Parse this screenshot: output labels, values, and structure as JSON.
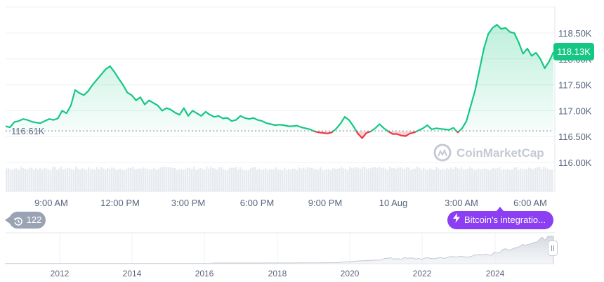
{
  "chart_data": {
    "type": "line",
    "y_ticks": [
      "118.50K",
      "118.00K",
      "117.50K",
      "117.00K",
      "116.50K",
      "116.00K"
    ],
    "ylim": [
      115.6,
      118.9
    ],
    "x_ticks": [
      "9:00 AM",
      "12:00 PM",
      "3:00 PM",
      "6:00 PM",
      "9:00 PM",
      "10 Aug",
      "3:00 AM",
      "6:00 AM"
    ],
    "reference_value": 116.61,
    "reference_label": "116.61K",
    "current_price_label": "118.13K",
    "series": [
      {
        "values": [
          116.7,
          116.68,
          116.78,
          116.8,
          116.84,
          116.82,
          116.79,
          116.77,
          116.76,
          116.8,
          116.84,
          116.82,
          116.85,
          117.0,
          116.95,
          117.1,
          117.4,
          117.34,
          117.3,
          117.38,
          117.5,
          117.6,
          117.7,
          117.8,
          117.86,
          117.75,
          117.62,
          117.5,
          117.35,
          117.3,
          117.2,
          117.26,
          117.12,
          117.2,
          117.15,
          117.1,
          117.0,
          117.05,
          117.02,
          116.96,
          116.92,
          117.05,
          116.9,
          117.0,
          116.95,
          116.9,
          116.98,
          116.92,
          116.88,
          116.9,
          116.85,
          116.86,
          116.8,
          116.82,
          116.9,
          116.86,
          116.84,
          116.86,
          116.82,
          116.8,
          116.76,
          116.74,
          116.72,
          116.73,
          116.72,
          116.7,
          116.7,
          116.71,
          116.68,
          116.66,
          116.64,
          116.6,
          116.58,
          116.57,
          116.56,
          116.58,
          116.65,
          116.75,
          116.88,
          116.82,
          116.7,
          116.56,
          116.47,
          116.57,
          116.6,
          116.66,
          116.74,
          116.66,
          116.6,
          116.55,
          116.55,
          116.52,
          116.51,
          116.56,
          116.58,
          116.62,
          116.66,
          116.72,
          116.64,
          116.66,
          116.65,
          116.64,
          116.63,
          116.67,
          116.58,
          116.66,
          116.8,
          117.1,
          117.4,
          117.8,
          118.2,
          118.48,
          118.6,
          118.66,
          118.58,
          118.6,
          118.52,
          118.5,
          118.32,
          118.1,
          118.2,
          118.06,
          118.12,
          118.0,
          117.82,
          117.95,
          118.13
        ]
      }
    ],
    "navigator_ticks": [
      "2012",
      "2014",
      "2016",
      "2018",
      "2020",
      "2022",
      "2024"
    ],
    "grid": true,
    "legend": "none"
  },
  "watermark": "CoinMarketCap",
  "events": {
    "count": "122"
  },
  "news": {
    "label": "Bitcoin's integratio..."
  },
  "colors": {
    "up": "#16c784",
    "down": "#ea3943",
    "accent": "#8b3ef2"
  }
}
